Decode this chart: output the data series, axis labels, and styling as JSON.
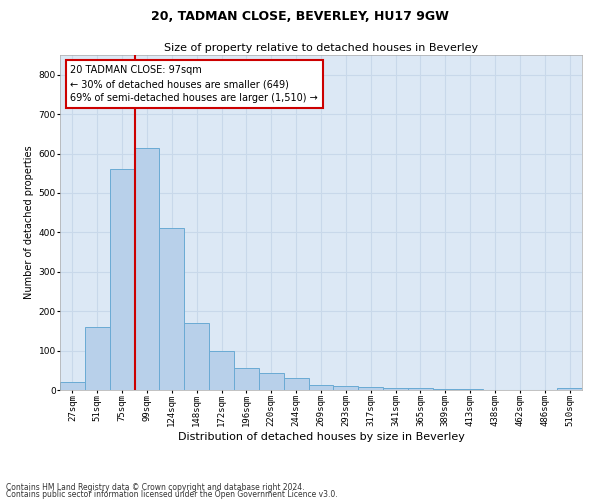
{
  "title1": "20, TADMAN CLOSE, BEVERLEY, HU17 9GW",
  "title2": "Size of property relative to detached houses in Beverley",
  "xlabel": "Distribution of detached houses by size in Beverley",
  "ylabel": "Number of detached properties",
  "categories": [
    "27sqm",
    "51sqm",
    "75sqm",
    "99sqm",
    "124sqm",
    "148sqm",
    "172sqm",
    "196sqm",
    "220sqm",
    "244sqm",
    "269sqm",
    "293sqm",
    "317sqm",
    "341sqm",
    "365sqm",
    "389sqm",
    "413sqm",
    "438sqm",
    "462sqm",
    "486sqm",
    "510sqm"
  ],
  "values": [
    20,
    160,
    560,
    615,
    410,
    170,
    100,
    55,
    43,
    30,
    13,
    10,
    8,
    5,
    4,
    3,
    2,
    1,
    1,
    1,
    5
  ],
  "bar_color": "#b8d0ea",
  "bar_edge_color": "#6aaad4",
  "grid_color": "#c8d8ea",
  "vline_color": "#cc0000",
  "annotation_text": "20 TADMAN CLOSE: 97sqm\n← 30% of detached houses are smaller (649)\n69% of semi-detached houses are larger (1,510) →",
  "annotation_box_color": "#ffffff",
  "annotation_box_edgecolor": "#cc0000",
  "ylim": [
    0,
    850
  ],
  "yticks": [
    0,
    100,
    200,
    300,
    400,
    500,
    600,
    700,
    800
  ],
  "footer1": "Contains HM Land Registry data © Crown copyright and database right 2024.",
  "footer2": "Contains public sector information licensed under the Open Government Licence v3.0.",
  "bg_color": "#dce8f5",
  "title1_fontsize": 9,
  "title2_fontsize": 8,
  "xlabel_fontsize": 8,
  "ylabel_fontsize": 7,
  "tick_fontsize": 6.5,
  "annot_fontsize": 7,
  "footer_fontsize": 5.5
}
